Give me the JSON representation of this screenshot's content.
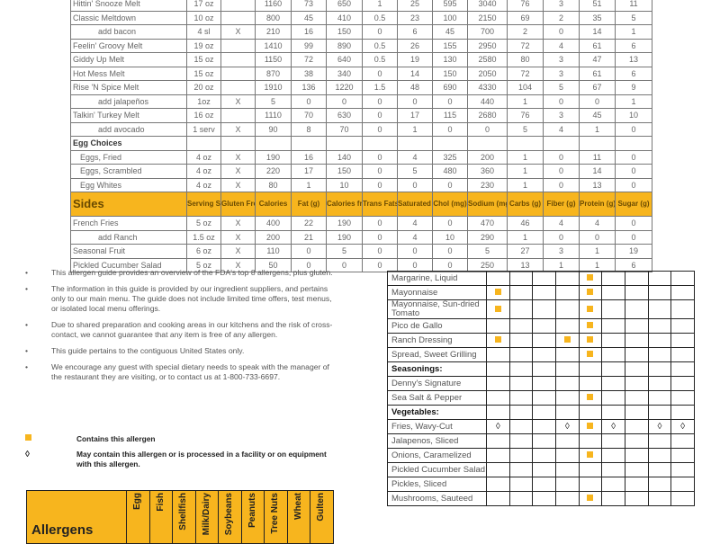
{
  "nutrition": {
    "columns": [
      "Serving Size",
      "Gluten Free",
      "Calories",
      "Fat (g)",
      "Calories from Fat",
      "Trans Fats (g)",
      "Saturated Fat (g)",
      "Chol (mg)",
      "Sodium (mg)",
      "Carbs (g)",
      "Fiber (g)",
      "Protein (g)",
      "Sugar (g)"
    ],
    "rows": [
      {
        "type": "item",
        "name": "Hittin' Snooze Melt",
        "values": [
          "17 oz",
          "",
          "1160",
          "73",
          "650",
          "1",
          "25",
          "595",
          "3040",
          "76",
          "3",
          "51",
          "11"
        ]
      },
      {
        "type": "item",
        "name": "Classic Meltdown",
        "values": [
          "10 oz",
          "",
          "800",
          "45",
          "410",
          "0.5",
          "23",
          "100",
          "2150",
          "69",
          "2",
          "35",
          "5"
        ]
      },
      {
        "type": "sub",
        "name": "add bacon",
        "values": [
          "4 sl",
          "X",
          "210",
          "16",
          "150",
          "0",
          "6",
          "45",
          "700",
          "2",
          "0",
          "14",
          "1"
        ]
      },
      {
        "type": "item",
        "name": "Feelin' Groovy Melt",
        "values": [
          "19 oz",
          "",
          "1410",
          "99",
          "890",
          "0.5",
          "26",
          "155",
          "2950",
          "72",
          "4",
          "61",
          "6"
        ]
      },
      {
        "type": "item",
        "name": "Giddy Up Melt",
        "values": [
          "15 oz",
          "",
          "1150",
          "72",
          "640",
          "0.5",
          "19",
          "130",
          "2580",
          "80",
          "3",
          "47",
          "13"
        ]
      },
      {
        "type": "item",
        "name": "Hot Mess Melt",
        "values": [
          "15 oz",
          "",
          "870",
          "38",
          "340",
          "0",
          "14",
          "150",
          "2050",
          "72",
          "3",
          "61",
          "6"
        ]
      },
      {
        "type": "item",
        "name": "Rise 'N Spice Melt",
        "values": [
          "20 oz",
          "",
          "1910",
          "136",
          "1220",
          "1.5",
          "48",
          "690",
          "4330",
          "104",
          "5",
          "67",
          "9"
        ]
      },
      {
        "type": "sub",
        "name": "add jalapeños",
        "values": [
          "1oz",
          "X",
          "5",
          "0",
          "0",
          "0",
          "0",
          "0",
          "440",
          "1",
          "0",
          "0",
          "1"
        ]
      },
      {
        "type": "item",
        "name": "Talkin' Turkey Melt",
        "values": [
          "16 oz",
          "",
          "1110",
          "70",
          "630",
          "0",
          "17",
          "115",
          "2680",
          "76",
          "3",
          "45",
          "10"
        ]
      },
      {
        "type": "sub",
        "name": "add avocado",
        "values": [
          "1 serv",
          "X",
          "90",
          "8",
          "70",
          "0",
          "1",
          "0",
          "0",
          "5",
          "4",
          "1",
          "0"
        ]
      },
      {
        "type": "section",
        "name": "Egg Choices",
        "values": [
          "",
          "",
          "",
          "",
          "",
          "",
          "",
          "",
          "",
          "",
          "",
          "",
          ""
        ]
      },
      {
        "type": "eggsub",
        "name": "Eggs, Fried",
        "values": [
          "4 oz",
          "X",
          "190",
          "16",
          "140",
          "0",
          "4",
          "325",
          "200",
          "1",
          "0",
          "11",
          "0"
        ]
      },
      {
        "type": "eggsub",
        "name": "Eggs, Scrambled",
        "values": [
          "4 oz",
          "X",
          "220",
          "17",
          "150",
          "0",
          "5",
          "480",
          "360",
          "1",
          "0",
          "14",
          "0"
        ]
      },
      {
        "type": "eggsub",
        "name": "Egg Whites",
        "values": [
          "4 oz",
          "X",
          "80",
          "1",
          "10",
          "0",
          "0",
          "0",
          "230",
          "1",
          "0",
          "13",
          "0"
        ]
      },
      {
        "type": "header",
        "name": "Sides"
      },
      {
        "type": "item",
        "name": "French Fries",
        "values": [
          "5 oz",
          "X",
          "400",
          "22",
          "190",
          "0",
          "4",
          "0",
          "470",
          "46",
          "4",
          "4",
          "0"
        ]
      },
      {
        "type": "sub",
        "name": "add Ranch",
        "values": [
          "1.5 oz",
          "X",
          "200",
          "21",
          "190",
          "0",
          "4",
          "10",
          "290",
          "1",
          "0",
          "0",
          "0"
        ]
      },
      {
        "type": "item",
        "name": "Seasonal Fruit",
        "values": [
          "6 oz",
          "X",
          "110",
          "0",
          "5",
          "0",
          "0",
          "0",
          "5",
          "27",
          "3",
          "1",
          "19"
        ]
      },
      {
        "type": "item",
        "name": "Pickled Cucumber Salad",
        "values": [
          "5 oz",
          "X",
          "50",
          "0",
          "0",
          "0",
          "0",
          "0",
          "250",
          "13",
          "1",
          "1",
          "6"
        ]
      }
    ]
  },
  "notes": {
    "bullet": "•",
    "items": [
      "This allergen guide provides an overview of the FDA's top 8 allergens, plus gluten.",
      "The information in this guide is provided by our ingredient suppliers, and pertains only to our main menu. The guide does not include limited time offers, test menus, or isolated local menu offerings.",
      "Due to shared preparation and cooking areas in our kitchens and the risk of cross-contact, we cannot guarantee that any item is free of any allergen.",
      "This guide pertains to the contiguous United States only.",
      "We encourage any guest with special dietary needs to speak with the manager of the restaurant they are visiting, or to contact us at 1-800-733-6697."
    ]
  },
  "legend": {
    "contains": "Contains this allergen",
    "may_contain_symbol": "◊",
    "may_contain": "May contain this allergen or is processed in a facility or on equipment with this allergen."
  },
  "allergens": {
    "title": "Allergens",
    "columns": [
      "Egg",
      "Fish",
      "Shellfish",
      "Milk/Dairy",
      "Soybeans",
      "Peanuts",
      "Tree Nuts",
      "Wheat",
      "Gulten"
    ],
    "accent_color": "#f7b51e",
    "rows": [
      {
        "type": "item",
        "name": "Margarine, Liquid",
        "marks": [
          "",
          "",
          "",
          "",
          "C",
          "",
          "",
          "",
          ""
        ]
      },
      {
        "type": "item",
        "name": "Mayonnaise",
        "marks": [
          "C",
          "",
          "",
          "",
          "C",
          "",
          "",
          "",
          ""
        ]
      },
      {
        "type": "item",
        "name": "Mayonnaise, Sun-dried Tomato",
        "marks": [
          "C",
          "",
          "",
          "",
          "C",
          "",
          "",
          "",
          ""
        ]
      },
      {
        "type": "item",
        "name": "Pico de Gallo",
        "marks": [
          "",
          "",
          "",
          "",
          "C",
          "",
          "",
          "",
          ""
        ]
      },
      {
        "type": "item",
        "name": "Ranch Dressing",
        "marks": [
          "C",
          "",
          "",
          "C",
          "C",
          "",
          "",
          "",
          ""
        ]
      },
      {
        "type": "item",
        "name": "Spread, Sweet Grilling",
        "marks": [
          "",
          "",
          "",
          "",
          "C",
          "",
          "",
          "",
          ""
        ]
      },
      {
        "type": "cat",
        "name": "Seasonings:",
        "marks": [
          "",
          "",
          "",
          "",
          "",
          "",
          "",
          "",
          ""
        ]
      },
      {
        "type": "item",
        "name": "Denny's Signature",
        "marks": [
          "",
          "",
          "",
          "",
          "",
          "",
          "",
          "",
          ""
        ]
      },
      {
        "type": "item",
        "name": "Sea Salt & Pepper",
        "marks": [
          "",
          "",
          "",
          "",
          "C",
          "",
          "",
          "",
          ""
        ]
      },
      {
        "type": "cat",
        "name": "Vegetables:",
        "marks": [
          "",
          "",
          "",
          "",
          "",
          "",
          "",
          "",
          ""
        ]
      },
      {
        "type": "item",
        "name": "Fries, Wavy-Cut",
        "marks": [
          "M",
          "",
          "",
          "M",
          "C",
          "M",
          "",
          "M",
          "M"
        ]
      },
      {
        "type": "item",
        "name": "Jalapenos, Sliced",
        "marks": [
          "",
          "",
          "",
          "",
          "",
          "",
          "",
          "",
          ""
        ]
      },
      {
        "type": "item",
        "name": "Onions, Caramelized",
        "marks": [
          "",
          "",
          "",
          "",
          "C",
          "",
          "",
          "",
          ""
        ]
      },
      {
        "type": "item",
        "name": "Pickled Cucumber Salad",
        "marks": [
          "",
          "",
          "",
          "",
          "",
          "",
          "",
          "",
          ""
        ]
      },
      {
        "type": "item",
        "name": "Pickles, Sliced",
        "marks": [
          "",
          "",
          "",
          "",
          "",
          "",
          "",
          "",
          ""
        ]
      },
      {
        "type": "item",
        "name": "Mushrooms, Sauteed",
        "marks": [
          "",
          "",
          "",
          "",
          "C",
          "",
          "",
          "",
          ""
        ]
      }
    ]
  }
}
